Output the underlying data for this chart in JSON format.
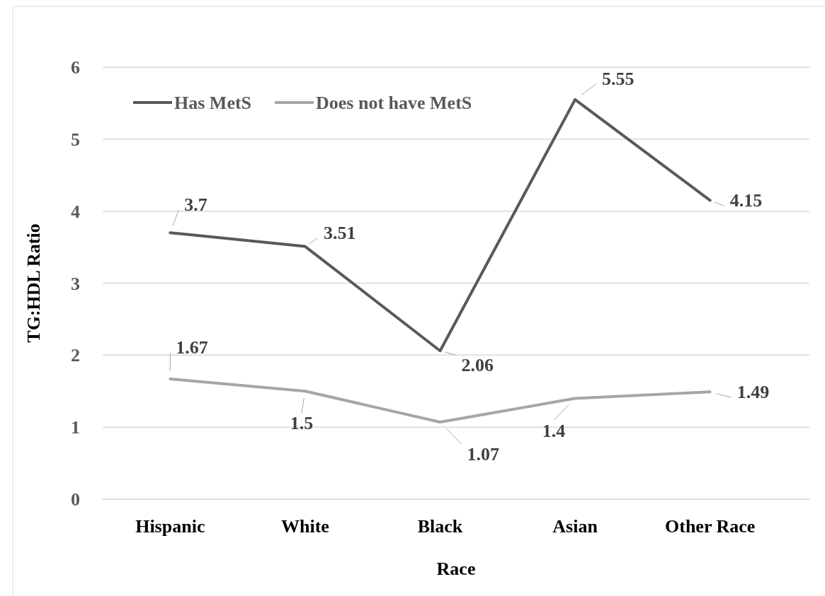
{
  "chart_data": {
    "type": "line",
    "xlabel": "Race",
    "ylabel": "TG:HDL Ratio",
    "categories": [
      "Hispanic",
      "White",
      "Black",
      "Asian",
      "Other Race"
    ],
    "series": [
      {
        "name": "Has MetS",
        "color": "#595959",
        "values": [
          3.7,
          3.51,
          2.06,
          5.55,
          4.15
        ]
      },
      {
        "name": "Does not have MetS",
        "color": "#a6a6a6",
        "values": [
          1.67,
          1.5,
          1.07,
          1.4,
          1.49
        ]
      }
    ],
    "ylim": [
      0,
      6
    ],
    "yticks": [
      0,
      1,
      2,
      3,
      4,
      5,
      6
    ],
    "grid": "y",
    "legend": "top left",
    "data_labels": true,
    "marker": "none",
    "line_style": "solid"
  }
}
